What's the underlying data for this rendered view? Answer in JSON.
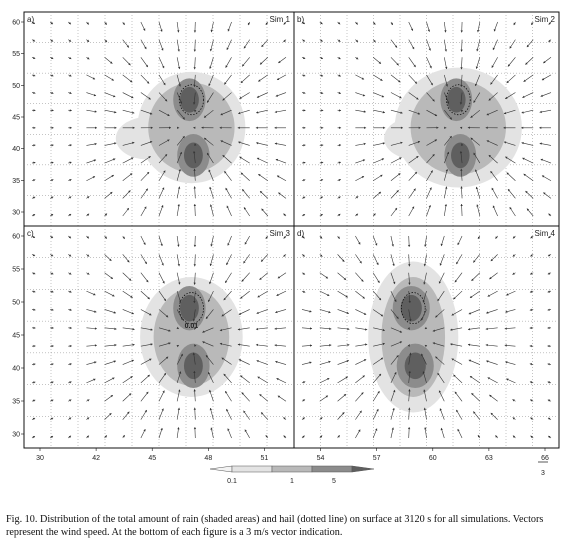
{
  "figure": {
    "panels": [
      {
        "letter": "a)",
        "label": "Sim 1",
        "annotation": ""
      },
      {
        "letter": "b)",
        "label": "Sim 2",
        "annotation": ""
      },
      {
        "letter": "c)",
        "label": "Sim 3",
        "annotation": "0.01"
      },
      {
        "letter": "d)",
        "label": "Sim 4",
        "annotation": ""
      }
    ],
    "y_ticks": [
      "60",
      "55",
      "50",
      "45",
      "40",
      "35",
      "30"
    ],
    "x_ticks": [
      "30",
      "42",
      "45",
      "48",
      "51",
      "54",
      "57",
      "60",
      "63",
      "66"
    ],
    "legend": {
      "labels": [
        "0.1",
        "1",
        "5"
      ],
      "scale_note": "3"
    },
    "colors": {
      "light": "#e3e3e3",
      "medium": "#b9b9b9",
      "dark": "#8c8c8c",
      "core": "#5f5f5f",
      "grid": "#8a8a8a",
      "arrow": "#333333"
    }
  },
  "caption": "Fig. 10. Distribution of the total amount of rain (shaded areas) and hail (dotted line) on surface at 3120 s for all simulations. Vectors represent the wind speed. At the bottom of each figure is a 3 m/s vector indication."
}
